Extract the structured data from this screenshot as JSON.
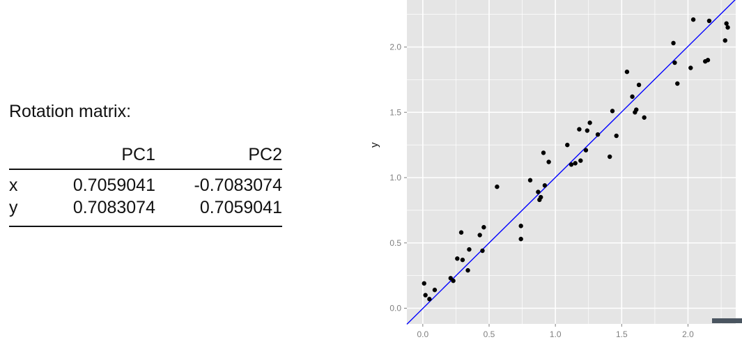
{
  "rotation": {
    "title": "Rotation matrix:",
    "columns": [
      "PC1",
      "PC2"
    ],
    "rows": [
      {
        "name": "x",
        "values": [
          "0.7059041",
          "-0.7083074"
        ]
      },
      {
        "name": "y",
        "values": [
          "0.7083074",
          "0.7059041"
        ]
      }
    ]
  },
  "colors": {
    "panel_bg": "#e5e5e5",
    "grid": "#ffffff",
    "fit_line": "#0000ff",
    "points": "#000000",
    "tick_text": "#7f7f7f"
  },
  "chart_data": {
    "type": "scatter",
    "title": "",
    "xlabel": "",
    "ylabel": "y",
    "xlim": [
      -0.12,
      2.36
    ],
    "ylim": [
      -0.12,
      2.36
    ],
    "x_ticks": [
      0.0,
      0.5,
      1.0,
      1.5,
      2.0
    ],
    "x_tick_labels": [
      "0.0",
      "0.5",
      "1.0",
      "1.5",
      "2.0"
    ],
    "y_ticks": [
      0.0,
      0.5,
      1.0,
      1.5,
      2.0
    ],
    "y_tick_labels": [
      "0.0",
      "0.5",
      "1.0",
      "1.5",
      "2.0"
    ],
    "grid": true,
    "fit_line": {
      "slope": 1.0034,
      "intercept": -0.002
    },
    "points": {
      "x": [
        0.01,
        0.02,
        0.05,
        0.09,
        0.21,
        0.23,
        0.26,
        0.29,
        0.3,
        0.34,
        0.35,
        0.43,
        0.45,
        0.46,
        0.56,
        0.74,
        0.74,
        0.81,
        0.87,
        0.88,
        0.89,
        0.91,
        0.92,
        0.95,
        1.09,
        1.12,
        1.15,
        1.18,
        1.19,
        1.23,
        1.24,
        1.26,
        1.32,
        1.41,
        1.43,
        1.46,
        1.54,
        1.58,
        1.6,
        1.61,
        1.63,
        1.67,
        1.89,
        1.9,
        1.92,
        2.02,
        2.04,
        2.13,
        2.15,
        2.16,
        2.28,
        2.29,
        2.3
      ],
      "y": [
        0.19,
        0.1,
        0.07,
        0.14,
        0.23,
        0.21,
        0.38,
        0.58,
        0.37,
        0.29,
        0.45,
        0.56,
        0.44,
        0.62,
        0.93,
        0.63,
        0.53,
        0.98,
        0.89,
        0.83,
        0.85,
        1.19,
        0.94,
        1.12,
        1.25,
        1.1,
        1.11,
        1.37,
        1.13,
        1.21,
        1.36,
        1.42,
        1.33,
        1.16,
        1.51,
        1.32,
        1.81,
        1.62,
        1.5,
        1.52,
        1.71,
        1.46,
        2.03,
        1.88,
        1.72,
        1.84,
        2.21,
        1.89,
        1.9,
        2.2,
        2.05,
        2.18,
        2.15
      ]
    }
  }
}
